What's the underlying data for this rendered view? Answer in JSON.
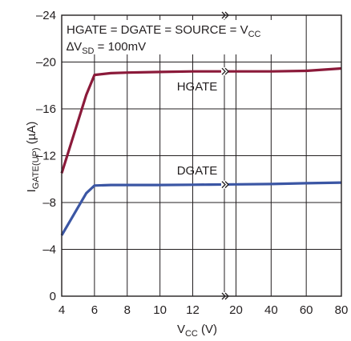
{
  "chart_data": {
    "type": "line",
    "x_axis": {
      "segments": [
        {
          "ticks": [
            4,
            6,
            8,
            10,
            12
          ],
          "range": [
            4,
            13
          ]
        },
        {
          "ticks": [
            20,
            40,
            60,
            80
          ],
          "range": [
            13,
            80
          ]
        }
      ],
      "tick_labels": [
        "4",
        "6",
        "8",
        "10",
        "12",
        "20",
        "40",
        "60",
        "80"
      ],
      "break_at": 13,
      "label_main": "V",
      "label_sub": "CC",
      "label_unit": " (V)"
    },
    "y_axis": {
      "ticks": [
        0,
        -4,
        -8,
        -12,
        -16,
        -20,
        -24
      ],
      "tick_labels": [
        "0",
        "–4",
        "–8",
        "–12",
        "–16",
        "–20",
        "–24"
      ],
      "range": [
        0,
        -24
      ],
      "label_main": "I",
      "label_sub": "GATE(UP)",
      "label_unit": " (µA)"
    },
    "grid": true,
    "annotation": {
      "line1_main": "HGATE = DGATE = SOURCE = V",
      "line1_sub": "CC",
      "line2_prefix": "∆V",
      "line2_sub": "SD",
      "line2_suffix": " = 100mV"
    },
    "series": [
      {
        "name": "HGATE",
        "color": "#8b1a3a",
        "points": [
          [
            4,
            -10.5
          ],
          [
            5.5,
            -17.2
          ],
          [
            6,
            -18.9
          ],
          [
            7,
            -19.05
          ],
          [
            8,
            -19.1
          ],
          [
            10,
            -19.15
          ],
          [
            12,
            -19.2
          ],
          [
            13,
            -19.2
          ],
          [
            20,
            -19.2
          ],
          [
            40,
            -19.2
          ],
          [
            60,
            -19.25
          ],
          [
            80,
            -19.45
          ]
        ]
      },
      {
        "name": "DGATE",
        "color": "#3b56a4",
        "points": [
          [
            4,
            -5.2
          ],
          [
            5.5,
            -8.8
          ],
          [
            6,
            -9.45
          ],
          [
            7,
            -9.5
          ],
          [
            8,
            -9.5
          ],
          [
            10,
            -9.5
          ],
          [
            12,
            -9.52
          ],
          [
            13,
            -9.53
          ],
          [
            20,
            -9.55
          ],
          [
            40,
            -9.58
          ],
          [
            60,
            -9.65
          ],
          [
            80,
            -9.7
          ]
        ]
      }
    ]
  }
}
